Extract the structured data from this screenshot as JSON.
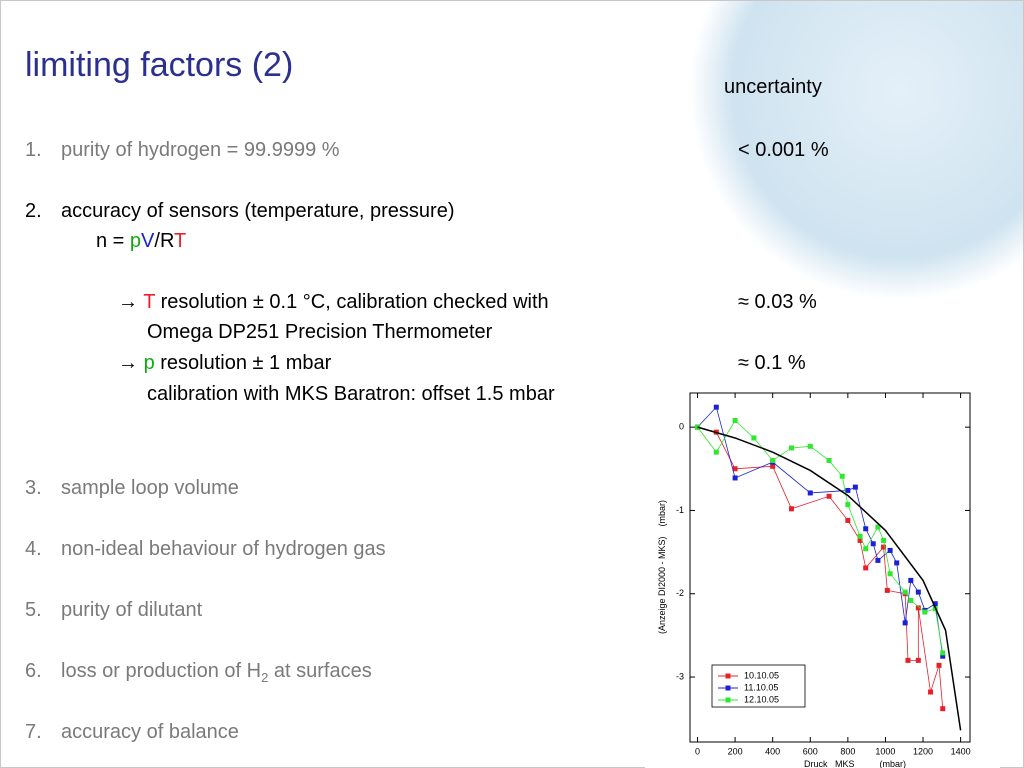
{
  "title": "limiting factors (2)",
  "uncertainty_header": "uncertainty",
  "items": [
    {
      "number": "1.",
      "text": "purity of hydrogen = 99.9999 %",
      "uncertainty": "< 0.001 %"
    },
    {
      "number": "2.",
      "text": "accuracy of sensors (temperature, pressure)"
    },
    {
      "number": "3.",
      "text": "sample loop volume"
    },
    {
      "number": "4.",
      "text": "non-ideal behaviour of hydrogen gas"
    },
    {
      "number": "5.",
      "text": "purity of dilutant"
    },
    {
      "number": "6.",
      "text": "loss or production of H",
      "subscript": "2",
      "text_after": " at surfaces"
    },
    {
      "number": "7.",
      "text": "accuracy of balance"
    }
  ],
  "formula": [
    "n = ",
    "p",
    "V",
    "/R",
    "T"
  ],
  "sub_items": [
    {
      "arrow": "→",
      "symbol": "T",
      "text": " resolution ± 0.1 °C, calibration checked with",
      "line2": "Omega DP251 Precision Thermometer",
      "uncertainty": "≈  0.03 %"
    },
    {
      "arrow": "→",
      "symbol": "p",
      "text": " resolution ± 1 mbar",
      "line2": "calibration with MKS Baratron: offset 1.5 mbar",
      "uncertainty": "≈  0.1 %"
    }
  ],
  "chart_data": {
    "type": "line",
    "x_label": "Druck   MKS          (mbar)",
    "y_label": "(Anzeige DI2000 - MKS)    (mbar)",
    "xlim": [
      -40,
      1450
    ],
    "ylim": [
      -3.78,
      0.41
    ],
    "xticks": [
      0,
      200,
      400,
      600,
      800,
      1000,
      1200,
      1400
    ],
    "yticks": [
      0,
      -1,
      -2,
      -3
    ],
    "series": [
      {
        "name": "10.10.05",
        "color": "#e8202a",
        "x": [
          0,
          100,
          200,
          400,
          500,
          700,
          800,
          865,
          895,
          990,
          1010,
          1105,
          1120,
          1175,
          1175,
          1240,
          1285,
          1305
        ],
        "values": [
          0,
          -0.06,
          -0.5,
          -0.47,
          -0.98,
          -0.83,
          -1.12,
          -1.36,
          -1.69,
          -1.44,
          -1.96,
          -2.0,
          -2.8,
          -2.8,
          -2.17,
          -3.18,
          -2.86,
          -3.38
        ]
      },
      {
        "name": "11.10.05",
        "color": "#1a22d4",
        "x": [
          0,
          100,
          200,
          400,
          600,
          800,
          840,
          895,
          935,
          960,
          1025,
          1060,
          1105,
          1135,
          1175,
          1210,
          1265,
          1305
        ],
        "values": [
          0,
          0.24,
          -0.61,
          -0.42,
          -0.79,
          -0.76,
          -0.72,
          -1.22,
          -1.4,
          -1.6,
          -1.48,
          -1.63,
          -2.35,
          -1.84,
          -1.98,
          -2.2,
          -2.12,
          -2.75
        ]
      },
      {
        "name": "12.10.05",
        "color": "#2ee82e",
        "x": [
          0,
          100,
          200,
          300,
          400,
          500,
          600,
          700,
          770,
          800,
          865,
          895,
          960,
          990,
          1025,
          1105,
          1135,
          1210,
          1265,
          1305
        ],
        "values": [
          0,
          -0.3,
          0.08,
          -0.13,
          -0.4,
          -0.25,
          -0.23,
          -0.4,
          -0.59,
          -0.93,
          -1.31,
          -1.46,
          -1.2,
          -1.36,
          -1.76,
          -1.98,
          -2.08,
          -2.22,
          -2.18,
          -2.71
        ]
      }
    ],
    "fit_curve": {
      "color": "#000000",
      "x": [
        0,
        200,
        400,
        600,
        800,
        1000,
        1200,
        1320,
        1400
      ],
      "values": [
        0,
        -0.13,
        -0.3,
        -0.52,
        -0.82,
        -1.24,
        -1.84,
        -2.44,
        -3.64
      ]
    }
  }
}
